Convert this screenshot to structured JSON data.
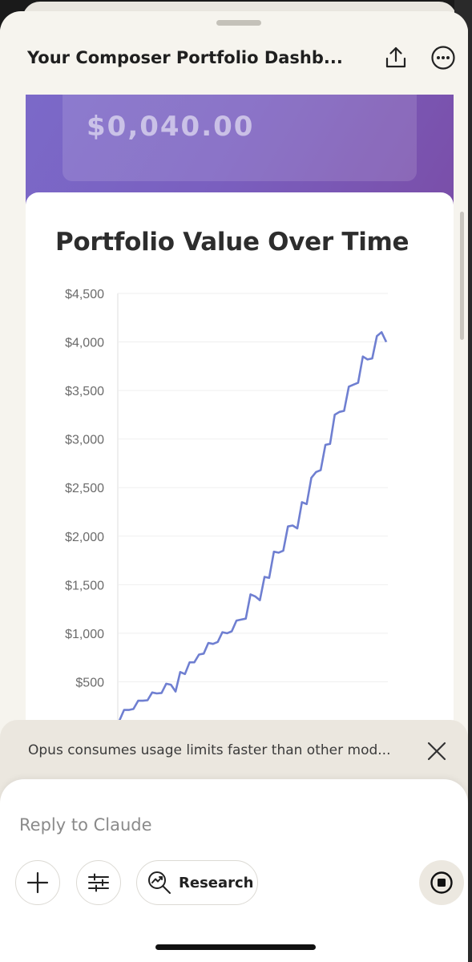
{
  "header": {
    "title": "Your Composer Portfolio Dashb...",
    "share_icon": "share-upload-icon",
    "more_icon": "more-options-icon"
  },
  "hero": {
    "value_partial": "$0,040.00"
  },
  "chart_data": {
    "type": "line",
    "title": "Portfolio Value Over Time",
    "ylim": [
      0,
      4500
    ],
    "yticks": [
      "$500",
      "$1,000",
      "$1,500",
      "$2,000",
      "$2,500",
      "$3,000",
      "$3,500",
      "$4,000",
      "$4,500"
    ],
    "ytick_values": [
      500,
      1000,
      1500,
      2000,
      2500,
      3000,
      3500,
      4000,
      4500
    ],
    "grid": true,
    "color": "#6f7fd1",
    "series": [
      {
        "values": [
          [
            0,
            100
          ],
          [
            1,
            210
          ],
          [
            2,
            210
          ],
          [
            3,
            220
          ],
          [
            4,
            305
          ],
          [
            5,
            305
          ],
          [
            6,
            310
          ],
          [
            7,
            390
          ],
          [
            8,
            380
          ],
          [
            9,
            385
          ],
          [
            10,
            480
          ],
          [
            11,
            470
          ],
          [
            12,
            400
          ],
          [
            13,
            600
          ],
          [
            14,
            580
          ],
          [
            15,
            700
          ],
          [
            16,
            700
          ],
          [
            17,
            780
          ],
          [
            18,
            790
          ],
          [
            19,
            900
          ],
          [
            20,
            890
          ],
          [
            21,
            910
          ],
          [
            22,
            1010
          ],
          [
            23,
            1000
          ],
          [
            24,
            1020
          ],
          [
            25,
            1130
          ],
          [
            26,
            1140
          ],
          [
            27,
            1150
          ],
          [
            28,
            1400
          ],
          [
            29,
            1380
          ],
          [
            30,
            1340
          ],
          [
            31,
            1580
          ],
          [
            32,
            1570
          ],
          [
            33,
            1840
          ],
          [
            34,
            1830
          ],
          [
            35,
            1850
          ],
          [
            36,
            2100
          ],
          [
            37,
            2110
          ],
          [
            38,
            2080
          ],
          [
            39,
            2350
          ],
          [
            40,
            2330
          ],
          [
            41,
            2600
          ],
          [
            42,
            2660
          ],
          [
            43,
            2680
          ],
          [
            44,
            2940
          ],
          [
            45,
            2950
          ],
          [
            46,
            3250
          ],
          [
            47,
            3280
          ],
          [
            48,
            3290
          ],
          [
            49,
            3540
          ],
          [
            50,
            3560
          ],
          [
            51,
            3580
          ],
          [
            52,
            3850
          ],
          [
            53,
            3820
          ],
          [
            54,
            3830
          ],
          [
            55,
            4060
          ],
          [
            56,
            4100
          ],
          [
            57,
            4000
          ]
        ]
      }
    ]
  },
  "notice": {
    "text": "Opus consumes usage limits faster than other mod...",
    "close_icon": "close-icon"
  },
  "composer": {
    "placeholder": "Reply to Claude",
    "plus_icon": "plus-icon",
    "tools_icon": "sliders-icon",
    "research_label": "Research",
    "research_icon": "research-icon",
    "stop_icon": "stop-icon"
  }
}
